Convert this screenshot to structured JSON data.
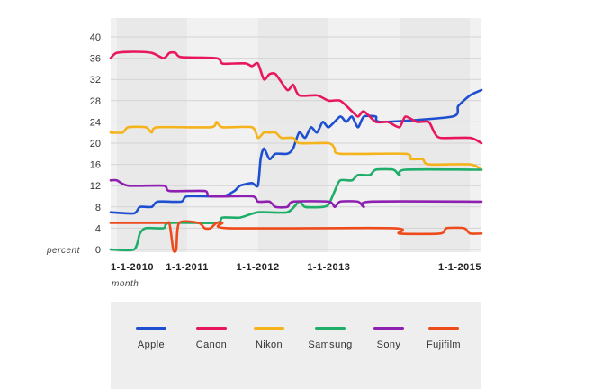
{
  "chart_data": {
    "type": "line",
    "xlabel": "month",
    "ylabel": "percent",
    "ylim": [
      0,
      40
    ],
    "yticks": [
      0,
      4,
      8,
      12,
      16,
      20,
      24,
      28,
      32,
      36,
      40
    ],
    "xlim": [
      "2009-12-01",
      "2015-03-01"
    ],
    "xticks": [
      "1-1-2010",
      "1-1-2011",
      "1-1-2012",
      "1-1-2013",
      "1-1-2015"
    ],
    "grid": true,
    "legend": "bottom",
    "series": [
      {
        "name": "Apple",
        "color": "#1e4fd1",
        "points": [
          [
            "2009-12-01",
            7
          ],
          [
            "2010-04-01",
            6.8
          ],
          [
            "2010-05-01",
            8
          ],
          [
            "2010-07-01",
            8
          ],
          [
            "2010-08-01",
            9
          ],
          [
            "2010-12-01",
            9
          ],
          [
            "2011-01-01",
            10
          ],
          [
            "2011-07-01",
            10
          ],
          [
            "2011-09-01",
            11
          ],
          [
            "2011-10-01",
            12
          ],
          [
            "2011-12-01",
            12.5
          ],
          [
            "2012-01-01",
            12
          ],
          [
            "2012-01-15",
            17
          ],
          [
            "2012-02-01",
            19
          ],
          [
            "2012-03-01",
            17
          ],
          [
            "2012-04-01",
            18
          ],
          [
            "2012-06-01",
            18
          ],
          [
            "2012-07-01",
            19
          ],
          [
            "2012-08-01",
            22
          ],
          [
            "2012-09-01",
            21
          ],
          [
            "2012-10-01",
            23
          ],
          [
            "2012-11-01",
            22
          ],
          [
            "2012-12-01",
            24
          ],
          [
            "2013-01-01",
            23
          ],
          [
            "2013-03-01",
            25
          ],
          [
            "2013-04-01",
            24
          ],
          [
            "2013-05-01",
            25
          ],
          [
            "2013-06-01",
            23
          ],
          [
            "2013-07-01",
            25
          ],
          [
            "2013-09-01",
            25
          ],
          [
            "2013-10-01",
            24
          ],
          [
            "2014-10-01",
            25
          ],
          [
            "2014-11-01",
            27
          ],
          [
            "2015-01-01",
            29
          ],
          [
            "2015-03-01",
            30
          ]
        ]
      },
      {
        "name": "Canon",
        "color": "#e8175d",
        "points": [
          [
            "2009-12-01",
            36
          ],
          [
            "2010-01-01",
            37
          ],
          [
            "2010-04-01",
            37.2
          ],
          [
            "2010-07-01",
            37
          ],
          [
            "2010-09-01",
            36
          ],
          [
            "2010-10-01",
            37
          ],
          [
            "2010-11-01",
            37
          ],
          [
            "2010-12-01",
            36.2
          ],
          [
            "2011-06-01",
            36
          ],
          [
            "2011-07-01",
            35
          ],
          [
            "2011-09-01",
            35
          ],
          [
            "2011-11-01",
            35
          ],
          [
            "2011-12-01",
            34.5
          ],
          [
            "2012-01-01",
            35
          ],
          [
            "2012-02-01",
            32
          ],
          [
            "2012-03-01",
            33
          ],
          [
            "2012-04-01",
            33
          ],
          [
            "2012-06-01",
            30
          ],
          [
            "2012-07-01",
            31
          ],
          [
            "2012-08-01",
            29
          ],
          [
            "2012-11-01",
            29
          ],
          [
            "2013-01-01",
            28
          ],
          [
            "2013-03-01",
            28
          ],
          [
            "2013-05-01",
            26
          ],
          [
            "2013-06-01",
            25
          ],
          [
            "2013-07-01",
            26
          ],
          [
            "2013-09-01",
            24
          ],
          [
            "2013-11-01",
            24
          ],
          [
            "2014-01-01",
            23
          ],
          [
            "2014-02-01",
            25
          ],
          [
            "2014-04-01",
            24
          ],
          [
            "2014-06-01",
            24
          ],
          [
            "2014-07-01",
            22
          ],
          [
            "2014-08-01",
            21
          ],
          [
            "2015-01-01",
            21
          ],
          [
            "2015-03-01",
            20
          ]
        ]
      },
      {
        "name": "Nikon",
        "color": "#f5b31b",
        "points": [
          [
            "2009-12-01",
            22
          ],
          [
            "2010-02-01",
            22
          ],
          [
            "2010-03-01",
            23
          ],
          [
            "2010-06-01",
            23
          ],
          [
            "2010-07-01",
            22
          ],
          [
            "2010-08-01",
            23
          ],
          [
            "2011-05-01",
            23
          ],
          [
            "2011-06-01",
            24
          ],
          [
            "2011-07-01",
            23
          ],
          [
            "2011-12-01",
            23
          ],
          [
            "2012-01-01",
            21
          ],
          [
            "2012-02-01",
            22
          ],
          [
            "2012-03-01",
            22
          ],
          [
            "2012-04-01",
            22
          ],
          [
            "2012-05-01",
            21
          ],
          [
            "2012-07-01",
            21
          ],
          [
            "2012-08-01",
            20
          ],
          [
            "2013-01-01",
            20
          ],
          [
            "2013-02-01",
            19
          ],
          [
            "2013-03-01",
            18
          ],
          [
            "2014-02-01",
            18
          ],
          [
            "2014-03-01",
            17
          ],
          [
            "2014-05-01",
            17
          ],
          [
            "2014-06-01",
            16
          ],
          [
            "2015-01-01",
            16
          ],
          [
            "2015-03-01",
            15
          ]
        ]
      },
      {
        "name": "Samsung",
        "color": "#1fae6a",
        "points": [
          [
            "2009-12-01",
            0
          ],
          [
            "2010-04-01",
            0
          ],
          [
            "2010-05-01",
            3
          ],
          [
            "2010-06-01",
            4
          ],
          [
            "2010-09-01",
            4
          ],
          [
            "2010-10-01",
            5
          ],
          [
            "2011-06-01",
            5
          ],
          [
            "2011-07-01",
            6
          ],
          [
            "2011-10-01",
            6
          ],
          [
            "2012-01-01",
            7
          ],
          [
            "2012-06-01",
            7
          ],
          [
            "2012-08-01",
            9
          ],
          [
            "2012-09-01",
            8
          ],
          [
            "2012-12-01",
            8
          ],
          [
            "2013-01-01",
            8.5
          ],
          [
            "2013-02-01",
            11
          ],
          [
            "2013-03-01",
            13
          ],
          [
            "2013-05-01",
            13
          ],
          [
            "2013-06-01",
            14
          ],
          [
            "2013-08-01",
            14
          ],
          [
            "2013-09-01",
            15
          ],
          [
            "2013-12-01",
            15
          ],
          [
            "2014-01-01",
            14
          ],
          [
            "2014-02-01",
            15
          ],
          [
            "2015-03-01",
            15
          ]
        ]
      },
      {
        "name": "Sony",
        "color": "#8e1fb0",
        "points": [
          [
            "2009-12-01",
            13
          ],
          [
            "2010-01-01",
            13
          ],
          [
            "2010-03-01",
            12
          ],
          [
            "2010-09-01",
            12
          ],
          [
            "2010-10-01",
            11
          ],
          [
            "2011-04-01",
            11
          ],
          [
            "2011-05-01",
            10
          ],
          [
            "2011-12-01",
            10
          ],
          [
            "2012-01-01",
            9
          ],
          [
            "2012-03-01",
            9
          ],
          [
            "2012-04-01",
            8
          ],
          [
            "2012-06-01",
            8
          ],
          [
            "2012-07-01",
            9
          ],
          [
            "2013-01-01",
            9
          ],
          [
            "2013-02-01",
            8
          ],
          [
            "2013-03-01",
            9
          ],
          [
            "2013-06-01",
            9
          ],
          [
            "2013-07-01",
            8
          ],
          [
            "2013-08-01",
            9
          ],
          [
            "2015-03-01",
            9
          ]
        ]
      },
      {
        "name": "Fujifilm",
        "color": "#ee4b1c",
        "points": [
          [
            "2009-12-01",
            5
          ],
          [
            "2010-09-01",
            5
          ],
          [
            "2010-10-01",
            4.8
          ],
          [
            "2010-10-20",
            0
          ],
          [
            "2010-11-05",
            0
          ],
          [
            "2010-11-20",
            5
          ],
          [
            "2011-03-01",
            5
          ],
          [
            "2011-04-01",
            4
          ],
          [
            "2011-05-01",
            4
          ],
          [
            "2011-06-01",
            5
          ],
          [
            "2011-07-01",
            5
          ],
          [
            "2011-08-01",
            4
          ],
          [
            "2013-12-01",
            4
          ],
          [
            "2014-01-01",
            3
          ],
          [
            "2014-08-01",
            3
          ],
          [
            "2014-09-01",
            4
          ],
          [
            "2014-12-01",
            4
          ],
          [
            "2015-01-01",
            3
          ],
          [
            "2015-03-01",
            3
          ]
        ]
      }
    ]
  }
}
